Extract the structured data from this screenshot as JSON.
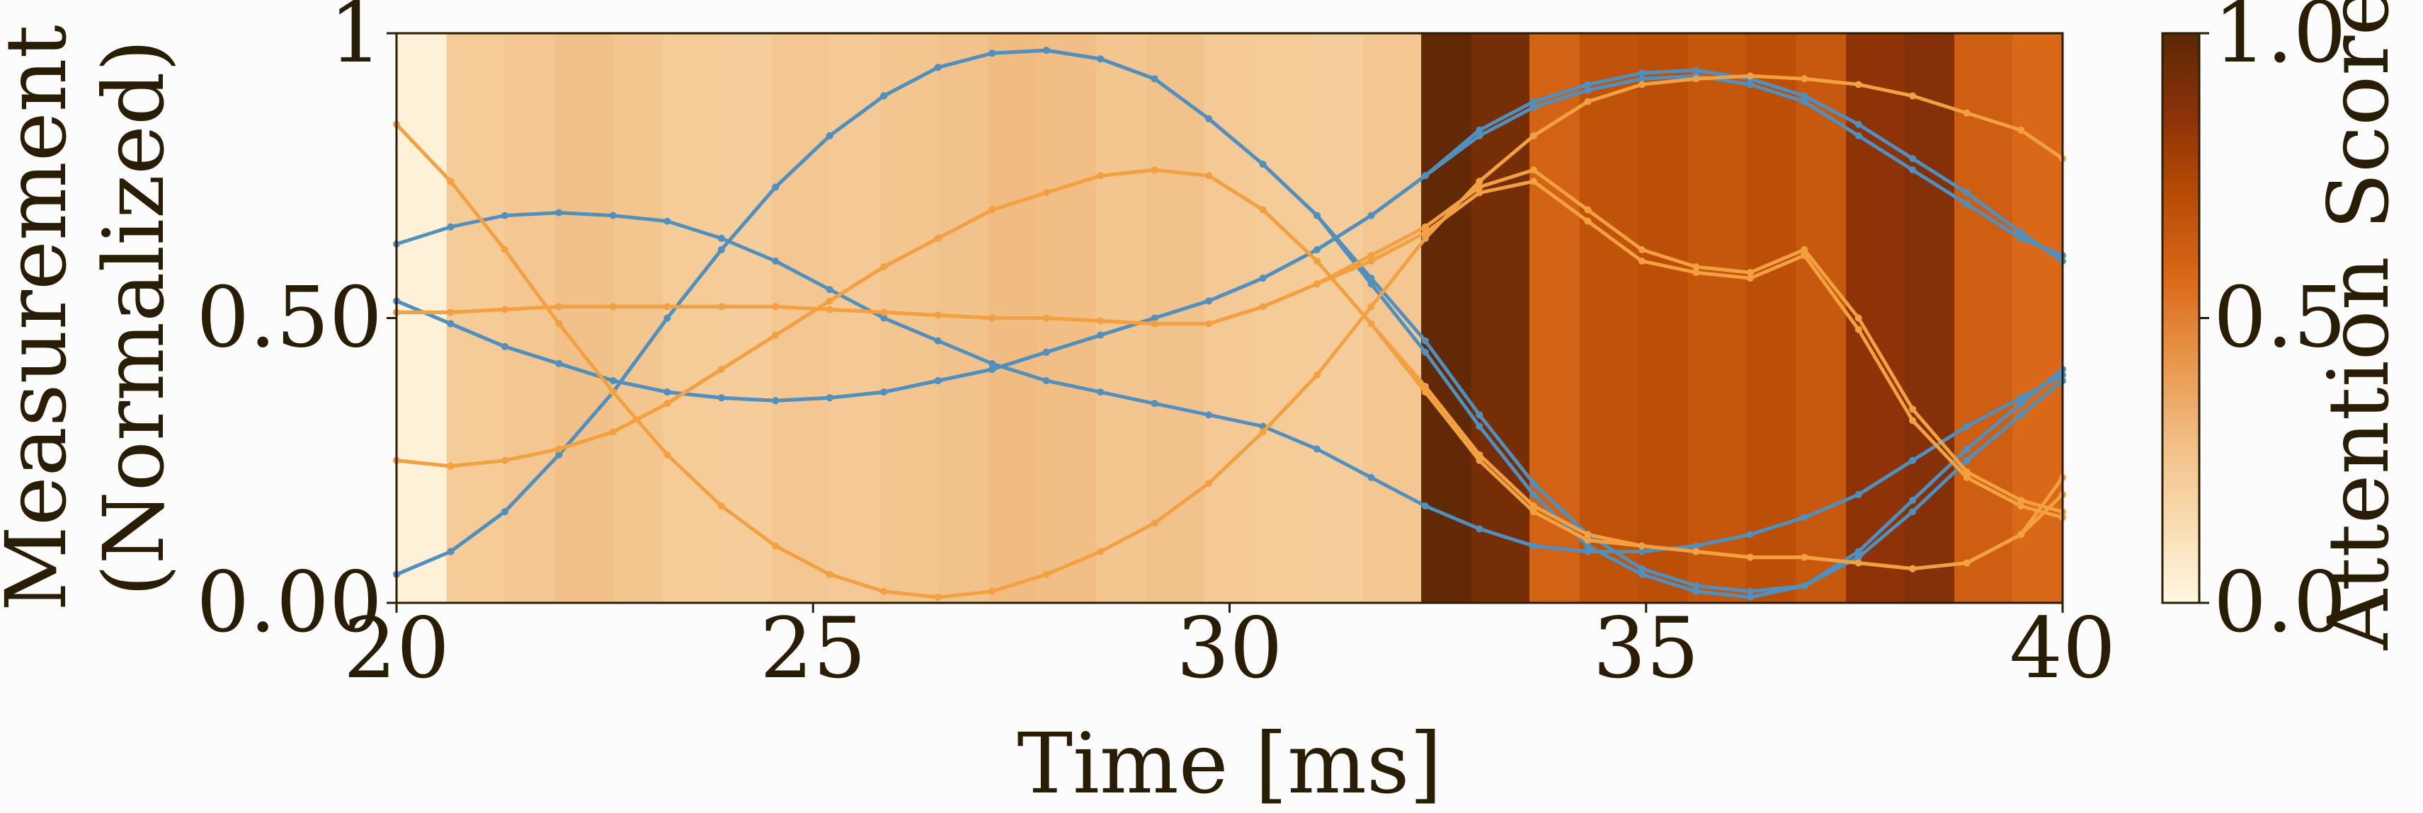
{
  "chart_data": {
    "type": "line",
    "xlabel": "Time [ms]",
    "ylabel_lines": [
      "Measurement",
      "(Normalized)"
    ],
    "xlim": [
      20,
      40
    ],
    "ylim": [
      0,
      1
    ],
    "xticks": [
      {
        "value": 20,
        "label": "20"
      },
      {
        "value": 25,
        "label": "25"
      },
      {
        "value": 30,
        "label": "30"
      },
      {
        "value": 35,
        "label": "35"
      },
      {
        "value": 40,
        "label": "40"
      }
    ],
    "yticks": [
      {
        "value": 0,
        "label": "0.00"
      },
      {
        "value": 0.5,
        "label": "0.50"
      },
      {
        "value": 1,
        "label": "1"
      }
    ],
    "grid": false,
    "colors": {
      "blue": "#5090bf",
      "orange": "#f2a040",
      "axis": "#2a1d05"
    },
    "attention": {
      "colormap": [
        "#fff7e2",
        "#f9dbb0",
        "#f1bd84",
        "#e8954a",
        "#d96818",
        "#b84c06",
        "#8c3208",
        "#5a2806"
      ],
      "segments": [
        {
          "x0": 20.0,
          "x1": 20.6,
          "score": 0.03
        },
        {
          "x0": 20.6,
          "x1": 21.3,
          "score": 0.22
        },
        {
          "x0": 21.3,
          "x1": 21.9,
          "score": 0.24
        },
        {
          "x0": 21.9,
          "x1": 22.6,
          "score": 0.27
        },
        {
          "x0": 22.6,
          "x1": 23.2,
          "score": 0.25
        },
        {
          "x0": 23.2,
          "x1": 23.9,
          "score": 0.22
        },
        {
          "x0": 23.9,
          "x1": 24.5,
          "score": 0.21
        },
        {
          "x0": 24.5,
          "x1": 25.2,
          "score": 0.24
        },
        {
          "x0": 25.2,
          "x1": 25.8,
          "score": 0.23
        },
        {
          "x0": 25.8,
          "x1": 26.5,
          "score": 0.25
        },
        {
          "x0": 26.5,
          "x1": 27.1,
          "score": 0.26
        },
        {
          "x0": 27.1,
          "x1": 27.7,
          "score": 0.29
        },
        {
          "x0": 27.7,
          "x1": 28.4,
          "score": 0.28
        },
        {
          "x0": 28.4,
          "x1": 29.0,
          "score": 0.25
        },
        {
          "x0": 29.0,
          "x1": 29.7,
          "score": 0.26
        },
        {
          "x0": 29.7,
          "x1": 30.3,
          "score": 0.23
        },
        {
          "x0": 30.3,
          "x1": 31.0,
          "score": 0.22
        },
        {
          "x0": 31.0,
          "x1": 31.6,
          "score": 0.21
        },
        {
          "x0": 31.6,
          "x1": 32.3,
          "score": 0.24
        },
        {
          "x0": 32.3,
          "x1": 32.9,
          "score": 0.98
        },
        {
          "x0": 32.9,
          "x1": 33.6,
          "score": 0.92
        },
        {
          "x0": 33.6,
          "x1": 34.2,
          "score": 0.6
        },
        {
          "x0": 34.2,
          "x1": 34.9,
          "score": 0.68
        },
        {
          "x0": 34.9,
          "x1": 35.5,
          "score": 0.7
        },
        {
          "x0": 35.5,
          "x1": 36.2,
          "score": 0.66
        },
        {
          "x0": 36.2,
          "x1": 36.8,
          "score": 0.7
        },
        {
          "x0": 36.8,
          "x1": 37.4,
          "score": 0.65
        },
        {
          "x0": 37.4,
          "x1": 38.1,
          "score": 0.85
        },
        {
          "x0": 38.1,
          "x1": 38.7,
          "score": 0.88
        },
        {
          "x0": 38.7,
          "x1": 39.4,
          "score": 0.62
        },
        {
          "x0": 39.4,
          "x1": 40.0,
          "score": 0.57
        }
      ]
    },
    "colorbar": {
      "label": "Attention Score",
      "range": [
        0,
        1
      ],
      "ticks": [
        {
          "value": 0,
          "label": "0.0"
        },
        {
          "value": 0.5,
          "label": "0.5"
        },
        {
          "value": 1,
          "label": "1.0"
        }
      ]
    },
    "series": [
      {
        "color": "blue",
        "x": [
          20,
          20.65,
          21.3,
          21.95,
          22.6,
          23.25,
          23.9,
          24.55,
          25.2,
          25.85,
          26.5,
          27.15,
          27.8,
          28.45,
          29.1,
          29.75,
          30.4,
          31.05,
          31.7,
          32.35,
          33.0,
          33.65,
          34.3,
          34.95,
          35.6,
          36.25,
          36.9,
          37.55,
          38.2,
          38.85,
          39.5,
          40
        ],
        "y": [
          0.05,
          0.09,
          0.16,
          0.26,
          0.37,
          0.5,
          0.62,
          0.73,
          0.82,
          0.89,
          0.94,
          0.965,
          0.97,
          0.955,
          0.92,
          0.85,
          0.77,
          0.68,
          0.56,
          0.44,
          0.31,
          0.19,
          0.1,
          0.05,
          0.02,
          0.01,
          0.03,
          0.09,
          0.18,
          0.27,
          0.35,
          0.41
        ]
      },
      {
        "color": "blue",
        "x": [
          20,
          20.65,
          21.3,
          21.95,
          22.6,
          23.25,
          23.9,
          24.55,
          25.2,
          25.85,
          26.5,
          27.15,
          27.8,
          28.45,
          29.1,
          29.75,
          30.4,
          31.05,
          31.7,
          32.35,
          33.0,
          33.65,
          34.3,
          34.95,
          35.6,
          36.25,
          36.9,
          37.55,
          38.2,
          38.85,
          39.5,
          40
        ],
        "y": [
          0.05,
          0.09,
          0.16,
          0.26,
          0.37,
          0.5,
          0.62,
          0.73,
          0.82,
          0.89,
          0.94,
          0.965,
          0.97,
          0.955,
          0.92,
          0.85,
          0.77,
          0.68,
          0.57,
          0.46,
          0.33,
          0.21,
          0.12,
          0.06,
          0.03,
          0.02,
          0.03,
          0.08,
          0.16,
          0.25,
          0.33,
          0.39
        ]
      },
      {
        "color": "blue",
        "x": [
          20,
          20.65,
          21.3,
          21.95,
          22.6,
          23.25,
          23.9,
          24.55,
          25.2,
          25.85,
          26.5,
          27.15,
          27.8,
          28.45,
          29.1,
          29.75,
          30.4,
          31.05,
          31.7,
          32.35,
          33.0,
          33.65,
          34.3,
          34.95,
          35.6,
          36.25,
          36.9,
          37.55,
          38.2,
          38.85,
          39.5,
          40
        ],
        "y": [
          0.63,
          0.66,
          0.68,
          0.685,
          0.68,
          0.67,
          0.64,
          0.6,
          0.55,
          0.5,
          0.46,
          0.42,
          0.39,
          0.37,
          0.35,
          0.33,
          0.31,
          0.27,
          0.22,
          0.17,
          0.13,
          0.1,
          0.09,
          0.09,
          0.1,
          0.12,
          0.15,
          0.19,
          0.25,
          0.31,
          0.36,
          0.4
        ]
      },
      {
        "color": "blue",
        "x": [
          20,
          20.65,
          21.3,
          21.95,
          22.6,
          23.25,
          23.9,
          24.55,
          25.2,
          25.85,
          26.5,
          27.15,
          27.8,
          28.45,
          29.1,
          29.75,
          30.4,
          31.05,
          31.7,
          32.35,
          33.0,
          33.65,
          34.3,
          34.95,
          35.6,
          36.25,
          36.9,
          37.55,
          38.2,
          38.85,
          39.5,
          40
        ],
        "y": [
          0.53,
          0.49,
          0.45,
          0.42,
          0.39,
          0.37,
          0.36,
          0.355,
          0.36,
          0.37,
          0.39,
          0.41,
          0.44,
          0.47,
          0.5,
          0.53,
          0.57,
          0.62,
          0.68,
          0.75,
          0.83,
          0.88,
          0.91,
          0.93,
          0.935,
          0.92,
          0.89,
          0.84,
          0.78,
          0.72,
          0.65,
          0.6
        ]
      },
      {
        "color": "blue",
        "x": [
          20,
          20.65,
          21.3,
          21.95,
          22.6,
          23.25,
          23.9,
          24.55,
          25.2,
          25.85,
          26.5,
          27.15,
          27.8,
          28.45,
          29.1,
          29.75,
          30.4,
          31.05,
          31.7,
          32.35,
          33.0,
          33.65,
          34.3,
          34.95,
          35.6,
          36.25,
          36.9,
          37.55,
          38.2,
          38.85,
          39.5,
          40
        ],
        "y": [
          0.53,
          0.49,
          0.45,
          0.42,
          0.39,
          0.37,
          0.36,
          0.355,
          0.36,
          0.37,
          0.39,
          0.41,
          0.44,
          0.47,
          0.5,
          0.53,
          0.57,
          0.62,
          0.68,
          0.75,
          0.82,
          0.87,
          0.9,
          0.92,
          0.925,
          0.91,
          0.88,
          0.82,
          0.76,
          0.7,
          0.64,
          0.61
        ]
      },
      {
        "color": "orange",
        "x": [
          20,
          20.65,
          21.3,
          21.95,
          22.6,
          23.25,
          23.9,
          24.55,
          25.2,
          25.85,
          26.5,
          27.15,
          27.8,
          28.45,
          29.1,
          29.75,
          30.4,
          31.05,
          31.7,
          32.35,
          33.0,
          33.65,
          34.3,
          34.95,
          35.6,
          36.25,
          36.9,
          37.55,
          38.2,
          38.85,
          39.5,
          40
        ],
        "y": [
          0.84,
          0.74,
          0.62,
          0.49,
          0.37,
          0.26,
          0.17,
          0.1,
          0.05,
          0.02,
          0.01,
          0.02,
          0.05,
          0.09,
          0.14,
          0.21,
          0.3,
          0.4,
          0.52,
          0.64,
          0.74,
          0.82,
          0.88,
          0.91,
          0.92,
          0.925,
          0.92,
          0.91,
          0.89,
          0.86,
          0.83,
          0.78
        ]
      },
      {
        "color": "orange",
        "x": [
          20,
          20.65,
          21.3,
          21.95,
          22.6,
          23.25,
          23.9,
          24.55,
          25.2,
          25.85,
          26.5,
          27.15,
          27.8,
          28.45,
          29.1,
          29.75,
          30.4,
          31.05,
          31.7,
          32.35,
          33.0,
          33.65,
          34.3,
          34.95,
          35.6,
          36.25,
          36.9,
          37.55,
          38.2,
          38.85,
          39.5,
          40
        ],
        "y": [
          0.25,
          0.24,
          0.25,
          0.27,
          0.3,
          0.35,
          0.41,
          0.47,
          0.53,
          0.59,
          0.64,
          0.69,
          0.72,
          0.75,
          0.76,
          0.75,
          0.69,
          0.6,
          0.49,
          0.38,
          0.26,
          0.17,
          0.12,
          0.1,
          0.09,
          0.08,
          0.08,
          0.07,
          0.06,
          0.07,
          0.12,
          0.19
        ]
      },
      {
        "color": "orange",
        "x": [
          20,
          20.65,
          21.3,
          21.95,
          22.6,
          23.25,
          23.9,
          24.55,
          25.2,
          25.85,
          26.5,
          27.15,
          27.8,
          28.45,
          29.1,
          29.75,
          30.4,
          31.05,
          31.7,
          32.35,
          33.0,
          33.65,
          34.3,
          34.95,
          35.6,
          36.25,
          36.9,
          37.55,
          38.2,
          38.85,
          39.5,
          40
        ],
        "y": [
          0.51,
          0.51,
          0.515,
          0.52,
          0.52,
          0.52,
          0.52,
          0.52,
          0.515,
          0.51,
          0.505,
          0.5,
          0.5,
          0.495,
          0.49,
          0.49,
          0.52,
          0.56,
          0.6,
          0.65,
          0.72,
          0.74,
          0.67,
          0.6,
          0.58,
          0.57,
          0.61,
          0.48,
          0.32,
          0.22,
          0.17,
          0.15
        ]
      },
      {
        "color": "orange",
        "x": [
          20,
          20.65,
          21.3,
          21.95,
          22.6,
          23.25,
          23.9,
          24.55,
          25.2,
          25.85,
          26.5,
          27.15,
          27.8,
          28.45,
          29.1,
          29.75,
          30.4,
          31.05,
          31.7,
          32.35,
          33.0,
          33.65,
          34.3,
          34.95,
          35.6,
          36.25,
          36.9,
          37.55,
          38.2,
          38.85,
          39.5,
          40
        ],
        "y": [
          0.51,
          0.51,
          0.515,
          0.52,
          0.52,
          0.52,
          0.52,
          0.52,
          0.515,
          0.51,
          0.505,
          0.5,
          0.5,
          0.495,
          0.49,
          0.49,
          0.52,
          0.56,
          0.61,
          0.66,
          0.73,
          0.76,
          0.69,
          0.62,
          0.59,
          0.58,
          0.62,
          0.5,
          0.34,
          0.23,
          0.18,
          0.16
        ]
      },
      {
        "color": "orange",
        "x": [
          20,
          20.65,
          21.3,
          21.95,
          22.6,
          23.25,
          23.9,
          24.55,
          25.2,
          25.85,
          26.5,
          27.15,
          27.8,
          28.45,
          29.1,
          29.75,
          30.4,
          31.05,
          31.7,
          32.35,
          33.0,
          33.65,
          34.3,
          34.95,
          35.6,
          36.25,
          36.9,
          37.55,
          38.2,
          38.85,
          39.5,
          40
        ],
        "y": [
          0.25,
          0.24,
          0.25,
          0.27,
          0.3,
          0.35,
          0.41,
          0.47,
          0.53,
          0.59,
          0.64,
          0.69,
          0.72,
          0.75,
          0.76,
          0.75,
          0.69,
          0.6,
          0.49,
          0.37,
          0.25,
          0.16,
          0.11,
          0.1,
          0.09,
          0.08,
          0.08,
          0.07,
          0.06,
          0.07,
          0.12,
          0.22
        ]
      }
    ]
  }
}
